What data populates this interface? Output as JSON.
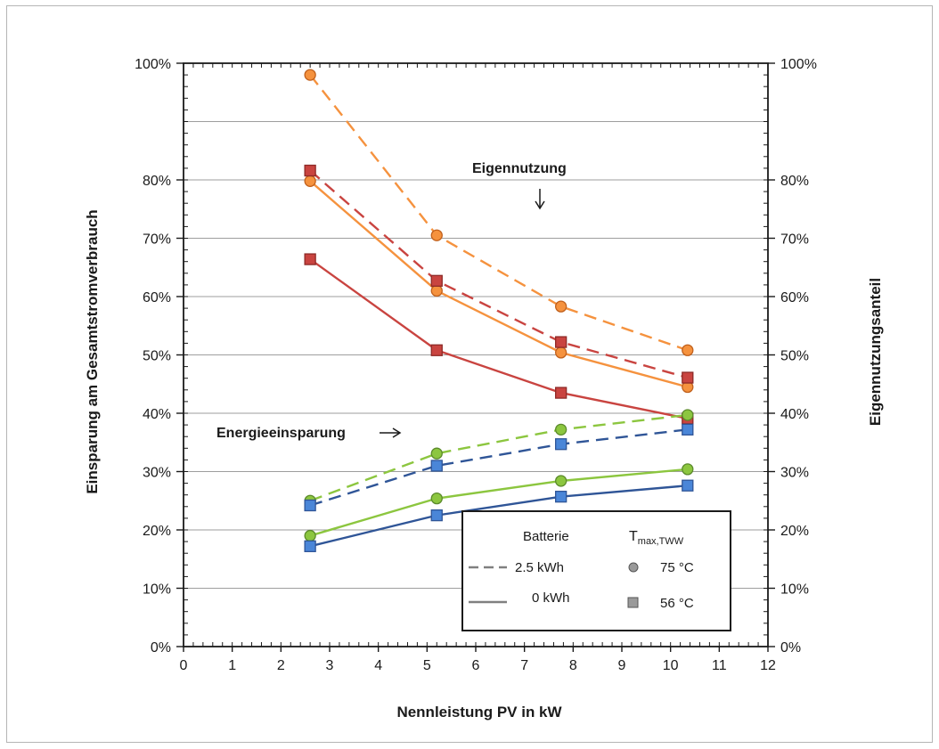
{
  "chart_data": {
    "type": "line",
    "xlabel": "Nennleistung PV in kW",
    "ylabel_left": "Einsparung am Gesamtstromverbrauch",
    "ylabel_right": "Eigennutzungsanteil",
    "xlim": [
      0,
      12
    ],
    "ylim": [
      0,
      100
    ],
    "x_ticks": [
      "0",
      "1",
      "2",
      "3",
      "4",
      "5",
      "6",
      "7",
      "8",
      "9",
      "10",
      "11",
      "12"
    ],
    "y_ticks_left": [
      "0%",
      "10%",
      "20%",
      "30%",
      "40%",
      "50%",
      "60%",
      "70%",
      "80%",
      "100%"
    ],
    "y_ticks_right": [
      "0%",
      "10%",
      "20%",
      "30%",
      "40%",
      "50%",
      "60%",
      "70%",
      "80%",
      "100%"
    ],
    "grid": true,
    "annotations": [
      {
        "text": "Eigennutzung",
        "arrow": "down"
      },
      {
        "text": "Energieeinsparung",
        "arrow": "right"
      }
    ],
    "series": [
      {
        "group": "Eigennutzung",
        "battery": "2.5 kWh",
        "temp": "75 °C",
        "color": "#f5923e",
        "dash": true,
        "marker": "circle",
        "x": [
          2.6,
          5.2,
          7.75,
          10.35
        ],
        "y": [
          98.0,
          70.5,
          58.3,
          50.8
        ]
      },
      {
        "group": "Eigennutzung",
        "battery": "0 kWh",
        "temp": "75 °C",
        "color": "#f5923e",
        "dash": false,
        "marker": "circle",
        "x": [
          2.6,
          5.2,
          7.75,
          10.35
        ],
        "y": [
          79.8,
          61.0,
          50.4,
          44.5
        ]
      },
      {
        "group": "Eigennutzung",
        "battery": "2.5 kWh",
        "temp": "56 °C",
        "color": "#c94440",
        "dash": true,
        "marker": "square",
        "x": [
          2.6,
          5.2,
          7.75,
          10.35
        ],
        "y": [
          81.6,
          62.7,
          52.2,
          46.1
        ]
      },
      {
        "group": "Eigennutzung",
        "battery": "0 kWh",
        "temp": "56 °C",
        "color": "#c94440",
        "dash": false,
        "marker": "square",
        "x": [
          2.6,
          5.2,
          7.75,
          10.35
        ],
        "y": [
          66.4,
          50.8,
          43.5,
          39.1
        ]
      },
      {
        "group": "Energieeinsparung",
        "battery": "2.5 kWh",
        "temp": "75 °C",
        "color": "#8cc63f",
        "dash": true,
        "marker": "circle",
        "x": [
          2.6,
          5.2,
          7.75,
          10.35
        ],
        "y": [
          25.0,
          33.1,
          37.2,
          39.7
        ]
      },
      {
        "group": "Energieeinsparung",
        "battery": "0 kWh",
        "temp": "75 °C",
        "color": "#8cc63f",
        "dash": false,
        "marker": "circle",
        "x": [
          2.6,
          5.2,
          7.75,
          10.35
        ],
        "y": [
          19.0,
          25.4,
          28.4,
          30.4
        ]
      },
      {
        "group": "Energieeinsparung",
        "battery": "2.5 kWh",
        "temp": "56 °C",
        "color": "#2f5597",
        "dash": true,
        "marker": "square",
        "x": [
          2.6,
          5.2,
          7.75,
          10.35
        ],
        "y": [
          24.2,
          31.0,
          34.7,
          37.2
        ]
      },
      {
        "group": "Energieeinsparung",
        "battery": "0 kWh",
        "temp": "56 °C",
        "color": "#2f5597",
        "dash": false,
        "marker": "square",
        "x": [
          2.6,
          5.2,
          7.75,
          10.35
        ],
        "y": [
          17.2,
          22.5,
          25.7,
          27.6
        ]
      }
    ],
    "marker_fill": {
      "circle_default": "#f5923e",
      "square_default": "#c94440",
      "blue_square": "#4a86d8",
      "green_circle": "#8cc63f"
    },
    "legend": {
      "placement": "bottom-right",
      "battery_header": "Batterie",
      "temp_header_main": "T",
      "temp_header_sub": "max,TWW",
      "battery_entries": [
        {
          "label": "2.5 kWh",
          "dash": true
        },
        {
          "label": "0 kWh",
          "dash": false
        }
      ],
      "temp_entries": [
        {
          "label": "75 °C",
          "marker": "circle"
        },
        {
          "label": "56 °C",
          "marker": "square"
        }
      ],
      "color": "#808080"
    }
  }
}
